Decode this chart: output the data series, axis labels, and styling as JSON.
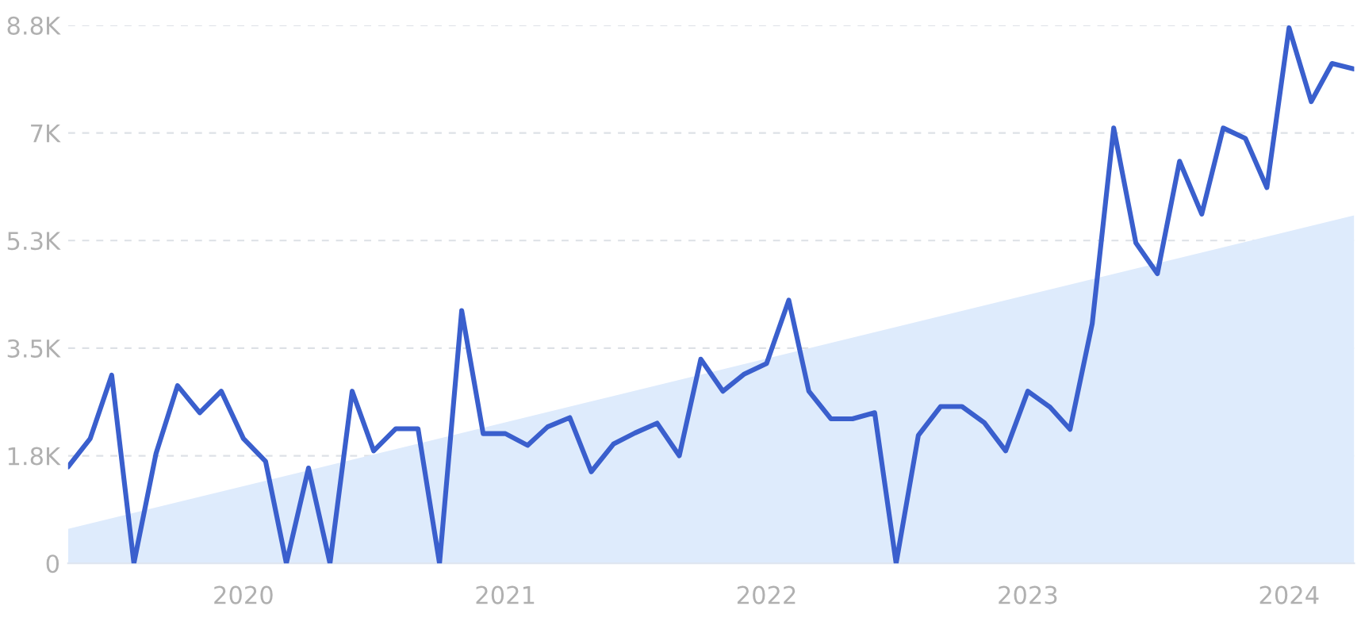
{
  "chart_data": {
    "type": "line",
    "x": [
      "2019-05",
      "2019-06",
      "2019-07",
      "2019-08",
      "2019-09",
      "2019-10",
      "2019-11",
      "2019-12",
      "2020-01",
      "2020-02",
      "2020-03",
      "2020-04",
      "2020-05",
      "2020-06",
      "2020-07",
      "2020-08",
      "2020-09",
      "2020-10",
      "2020-11",
      "2020-12",
      "2021-01",
      "2021-02",
      "2021-03",
      "2021-04",
      "2021-05",
      "2021-06",
      "2021-07",
      "2021-08",
      "2021-09",
      "2021-10",
      "2021-11",
      "2021-12",
      "2022-01",
      "2022-02",
      "2022-03",
      "2022-04",
      "2022-05",
      "2022-06",
      "2022-07",
      "2022-08",
      "2022-09",
      "2022-10",
      "2022-11",
      "2022-12",
      "2023-01",
      "2023-02",
      "2023-03",
      "2023-04",
      "2023-05",
      "2023-06",
      "2023-07",
      "2023-08",
      "2023-09",
      "2023-10",
      "2023-11",
      "2023-12",
      "2024-01",
      "2024-02",
      "2024-03",
      "2024-04"
    ],
    "series": [
      {
        "type": "area",
        "color": "#deebfc",
        "x": [
          "2019-05",
          "2024-04"
        ],
        "values": [
          560,
          5660
        ]
      },
      {
        "color": "#3a5fcd",
        "values": [
          1570,
          2030,
          3060,
          0,
          1790,
          2890,
          2450,
          2800,
          2030,
          1660,
          0,
          1550,
          0,
          2800,
          1830,
          2190,
          2190,
          0,
          4110,
          2110,
          2110,
          1920,
          2220,
          2370,
          1490,
          1940,
          2120,
          2280,
          1750,
          3320,
          2800,
          3080,
          3250,
          4280,
          2800,
          2350,
          2350,
          2450,
          0,
          2080,
          2550,
          2550,
          2290,
          1830,
          2800,
          2540,
          2180,
          3900,
          7080,
          5210,
          4710,
          6540,
          5680,
          7080,
          6910,
          6110,
          8710,
          7510,
          8130,
          8040
        ]
      }
    ],
    "xlim": [
      "2019-05",
      "2024-04"
    ],
    "xticks": [
      "2020",
      "2021",
      "2022",
      "2023",
      "2024"
    ],
    "ylim": [
      0,
      8750
    ],
    "yticks": [
      0,
      {
        "value": 1750,
        "label": "1.8K"
      },
      {
        "value": 3500,
        "label": "3.5K"
      },
      {
        "value": 5250,
        "label": "5.3K"
      },
      {
        "value": 7000,
        "label": "7K"
      },
      {
        "value": 8750,
        "label": "8.8K"
      }
    ],
    "grid": "y",
    "line_style": "solid",
    "marker": "none"
  }
}
